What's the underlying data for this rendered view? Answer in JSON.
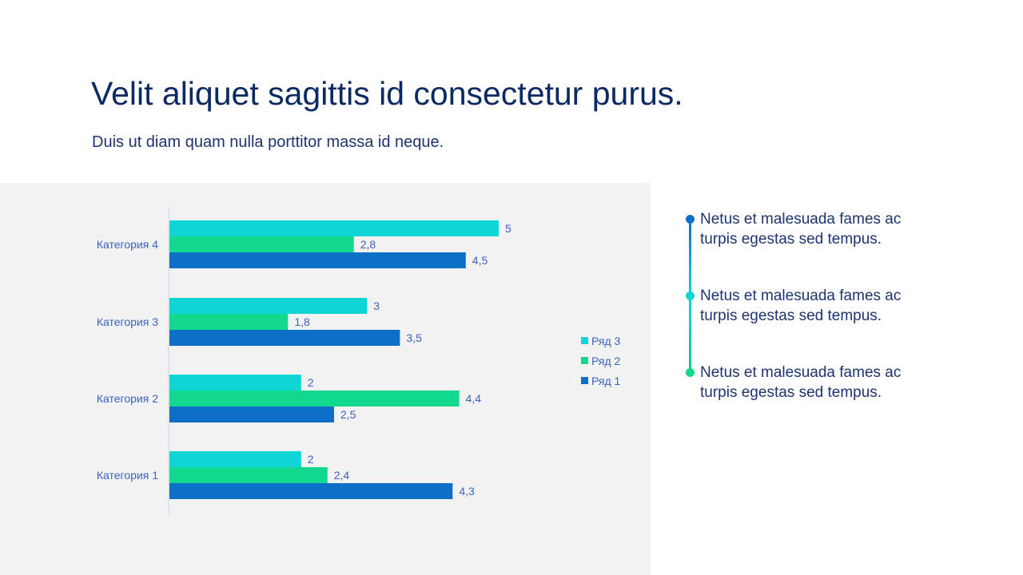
{
  "header": {
    "title": "Velit aliquet sagittis id consectetur purus.",
    "subtitle": "Duis ut diam quam nulla porttitor massa id neque."
  },
  "colors": {
    "series1": "#0e6fc6",
    "series2": "#13d98e",
    "series3": "#0fd5d6",
    "label": "#3b62c4",
    "panel": "#f2f2f2"
  },
  "chart_data": {
    "type": "bar",
    "orientation": "horizontal",
    "title": "",
    "xlabel": "",
    "ylabel": "",
    "xlim": [
      0,
      5
    ],
    "grid": false,
    "legend": "right",
    "categories": [
      "Категория 1",
      "Категория 2",
      "Категория 3",
      "Категория 4"
    ],
    "series": [
      {
        "name": "Ряд 1",
        "values": [
          4.3,
          2.5,
          3.5,
          4.5
        ],
        "labels": [
          "4,3",
          "2,5",
          "3,5",
          "4,5"
        ]
      },
      {
        "name": "Ряд 2",
        "values": [
          2.4,
          4.4,
          1.8,
          2.8
        ],
        "labels": [
          "2,4",
          "4,4",
          "1,8",
          "2,8"
        ]
      },
      {
        "name": "Ряд 3",
        "values": [
          2,
          2,
          3,
          5
        ],
        "labels": [
          "2",
          "2",
          "3",
          "5"
        ]
      }
    ]
  },
  "timeline": {
    "items": [
      {
        "text": "Netus et malesuada fames ac turpis egestas sed tempus.",
        "dot_color": "#0e6fc6"
      },
      {
        "text": "Netus et malesuada fames ac turpis egestas sed tempus.",
        "dot_color": "#0fd5d6"
      },
      {
        "text": "Netus et malesuada fames ac turpis egestas sed tempus.",
        "dot_color": "#13d98e"
      }
    ]
  }
}
